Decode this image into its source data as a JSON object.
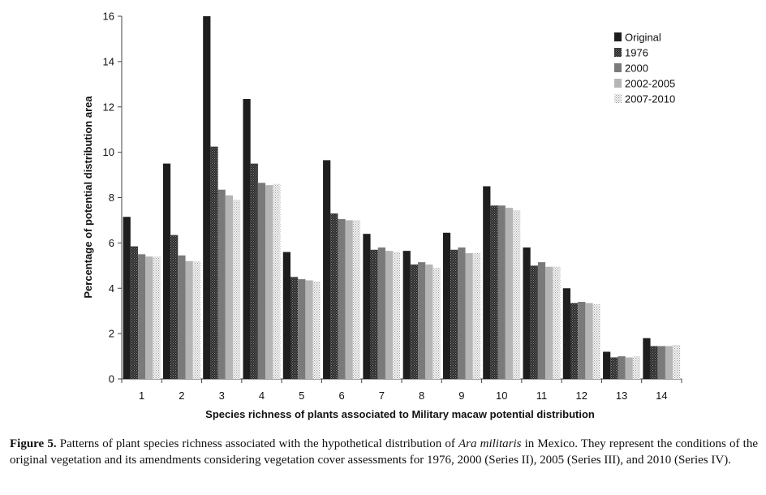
{
  "chart_data": {
    "type": "bar",
    "xlabel": "Species richness of plants associated to Military macaw potential distribution",
    "ylabel": "Percentage of potential distribution area",
    "ylim": [
      0,
      16
    ],
    "yticks": [
      0,
      2,
      4,
      6,
      8,
      10,
      12,
      14,
      16
    ],
    "categories": [
      "1",
      "2",
      "3",
      "4",
      "5",
      "6",
      "7",
      "8",
      "9",
      "10",
      "11",
      "12",
      "13",
      "14"
    ],
    "legend_position": "top-right",
    "series": [
      {
        "name": "Original",
        "color": "#1e1e1e",
        "pattern": "solid",
        "values": [
          7.15,
          9.5,
          16.0,
          12.35,
          5.6,
          9.65,
          6.4,
          5.65,
          6.45,
          8.5,
          5.8,
          4.0,
          1.2,
          1.8
        ]
      },
      {
        "name": "1976",
        "color": "#333333",
        "pattern": "dark-dots",
        "values": [
          5.85,
          6.35,
          10.25,
          9.5,
          4.5,
          7.3,
          5.7,
          5.05,
          5.7,
          7.65,
          5.0,
          3.35,
          0.95,
          1.45
        ]
      },
      {
        "name": "2000",
        "color": "#7a7a7a",
        "pattern": "solid",
        "values": [
          5.5,
          5.45,
          8.35,
          8.65,
          4.4,
          7.05,
          5.8,
          5.15,
          5.8,
          7.65,
          5.15,
          3.4,
          1.0,
          1.45
        ]
      },
      {
        "name": "2002-2005",
        "color": "#b5b5b5",
        "pattern": "solid",
        "values": [
          5.4,
          5.2,
          8.1,
          8.55,
          4.35,
          7.0,
          5.65,
          5.05,
          5.55,
          7.55,
          4.95,
          3.35,
          0.95,
          1.45
        ]
      },
      {
        "name": "2007-2010",
        "color": "#e0e0e0",
        "pattern": "light-dots",
        "values": [
          5.4,
          5.2,
          7.9,
          8.6,
          4.3,
          7.0,
          5.6,
          4.9,
          5.55,
          7.45,
          4.95,
          3.3,
          1.0,
          1.5
        ]
      }
    ]
  },
  "caption": {
    "label": "Figure 5.",
    "text_before_species": " Patterns of plant species richness associated with the hypothetical distribution of ",
    "species": "Ara militaris",
    "text_after_species": " in Mexico. They represent the conditions of the original vegetation and its amendments considering vegetation cover assessments for 1976, 2000 (Series II), 2005 (Series III), and 2010 (Series IV)."
  }
}
